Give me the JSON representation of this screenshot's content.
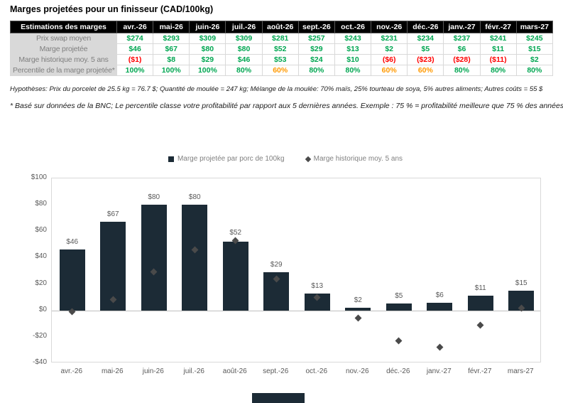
{
  "page": {
    "title": "Marges projetées pour un finisseur (CAD/100kg)",
    "hypotheses": "Hypothèses: Prix du porcelet de 25.5 kg = 76.7 $; Quantité de moulée = 247 kg; Mélange de la moulée: 70% maïs, 25% tourteau de soya, 5% autres aliments; Autres coûts = 55 $",
    "footnote": "* Basé sur données de la BNC; Le percentile classe votre profitabilité par rapport aux 5 dernières années. Exemple : 75 % = profitabilité meilleure que 75 % des années passées."
  },
  "colors": {
    "green": "#00A651",
    "red": "#FF0000",
    "orange": "#FF9900",
    "bar": "#1C2B36",
    "diamond": "#4A4A4A",
    "header_bg": "#000000",
    "label_bg": "#D9D9D9",
    "label_text": "#7F7F7F"
  },
  "table": {
    "corner_header": "Estimations des marges",
    "months": [
      "avr.-26",
      "mai-26",
      "juin-26",
      "juil.-26",
      "août-26",
      "sept.-26",
      "oct.-26",
      "nov.-26",
      "déc.-26",
      "janv.-27",
      "févr.-27",
      "mars-27"
    ],
    "rows": [
      {
        "label": "Prix swap moyen",
        "values": [
          "$274",
          "$293",
          "$309",
          "$309",
          "$281",
          "$257",
          "$243",
          "$231",
          "$234",
          "$237",
          "$241",
          "$245"
        ],
        "colors": [
          "green",
          "green",
          "green",
          "green",
          "green",
          "green",
          "green",
          "green",
          "green",
          "green",
          "green",
          "green"
        ]
      },
      {
        "label": "Marge projetée",
        "values": [
          "$46",
          "$67",
          "$80",
          "$80",
          "$52",
          "$29",
          "$13",
          "$2",
          "$5",
          "$6",
          "$11",
          "$15"
        ],
        "colors": [
          "green",
          "green",
          "green",
          "green",
          "green",
          "green",
          "green",
          "green",
          "green",
          "green",
          "green",
          "green"
        ]
      },
      {
        "label": "Marge historique moy. 5 ans",
        "values": [
          "($1)",
          "$8",
          "$29",
          "$46",
          "$53",
          "$24",
          "$10",
          "($6)",
          "($23)",
          "($28)",
          "($11)",
          "$2"
        ],
        "colors": [
          "red",
          "green",
          "green",
          "green",
          "green",
          "green",
          "green",
          "red",
          "red",
          "red",
          "red",
          "green"
        ]
      },
      {
        "label": "Percentile de la marge projetée*",
        "values": [
          "100%",
          "100%",
          "100%",
          "80%",
          "60%",
          "80%",
          "80%",
          "60%",
          "60%",
          "80%",
          "80%",
          "80%"
        ],
        "colors": [
          "green",
          "green",
          "green",
          "green",
          "orange",
          "green",
          "green",
          "orange",
          "orange",
          "green",
          "green",
          "green"
        ]
      }
    ]
  },
  "chart_data": {
    "type": "bar",
    "categories": [
      "avr.-26",
      "mai-26",
      "juin-26",
      "juil.-26",
      "août-26",
      "sept.-26",
      "oct.-26",
      "nov.-26",
      "déc.-26",
      "janv.-27",
      "févr.-27",
      "mars-27"
    ],
    "series": [
      {
        "name": "Marge projetée par porc de 100kg",
        "type": "bar",
        "values": [
          46,
          67,
          80,
          80,
          52,
          29,
          13,
          2,
          5,
          6,
          11,
          15
        ],
        "labels": [
          "$46",
          "$67",
          "$80",
          "$80",
          "$52",
          "$29",
          "$13",
          "$2",
          "$5",
          "$6",
          "$11",
          "$15"
        ]
      },
      {
        "name": "Marge historique moy. 5 ans",
        "type": "diamond-marker",
        "values": [
          -1,
          8,
          29,
          46,
          53,
          24,
          10,
          -6,
          -23,
          -28,
          -11,
          2
        ]
      }
    ],
    "ylim": [
      -40,
      100
    ],
    "yticks": [
      {
        "value": 100,
        "label": "$100"
      },
      {
        "value": 80,
        "label": "$80"
      },
      {
        "value": 60,
        "label": "$60"
      },
      {
        "value": 40,
        "label": "$40"
      },
      {
        "value": 20,
        "label": "$20"
      },
      {
        "value": 0,
        "label": "$0"
      },
      {
        "value": -20,
        "label": "-$20"
      },
      {
        "value": -40,
        "label": "-$40"
      }
    ],
    "legend_position": "top",
    "grid": false
  }
}
